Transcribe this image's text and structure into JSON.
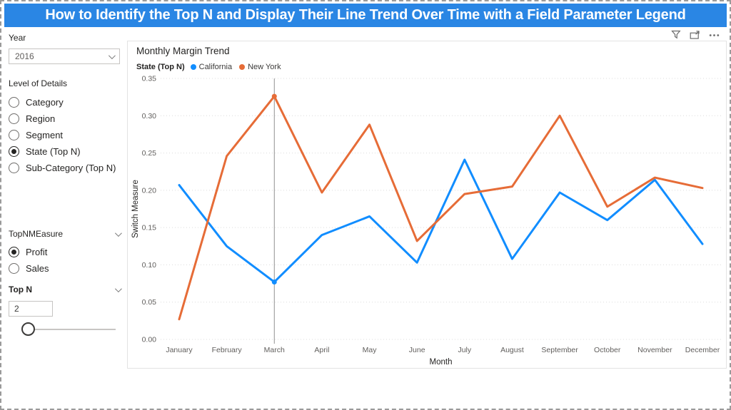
{
  "page": {
    "title": "How to Identify the Top N and Display Their Line Trend Over Time with a Field Parameter Legend",
    "title_bar_color": "#2a86e4"
  },
  "sidebar": {
    "year": {
      "label": "Year",
      "selected": "2016"
    },
    "level_of_details": {
      "label": "Level of Details",
      "options": [
        {
          "label": "Category",
          "selected": false
        },
        {
          "label": "Region",
          "selected": false
        },
        {
          "label": "Segment",
          "selected": false
        },
        {
          "label": "State (Top N)",
          "selected": true
        },
        {
          "label": "Sub-Category (Top N)",
          "selected": false
        }
      ]
    },
    "measure": {
      "label": "TopNMEasure",
      "options": [
        {
          "label": "Profit",
          "selected": true
        },
        {
          "label": "Sales",
          "selected": false
        }
      ]
    },
    "top_n": {
      "label": "Top N",
      "value": "2"
    }
  },
  "visual": {
    "title": "Monthly Margin Trend",
    "header_icons": [
      "filter-icon",
      "focus-mode-icon",
      "more-options-icon"
    ],
    "legend": {
      "label": "State (Top N)",
      "items": [
        {
          "label": "California",
          "color": "#118DFF"
        },
        {
          "label": "New York",
          "color": "#E66C37"
        }
      ]
    }
  },
  "chart_data": {
    "type": "line",
    "title": "Monthly Margin Trend",
    "xlabel": "Month",
    "ylabel": "Switch Measure",
    "ylim": [
      0,
      0.35
    ],
    "ytick_step": 0.05,
    "grid": true,
    "legend_position": "top",
    "categories": [
      "January",
      "February",
      "March",
      "April",
      "May",
      "June",
      "July",
      "August",
      "September",
      "October",
      "November",
      "December"
    ],
    "series": [
      {
        "name": "California",
        "color": "#118DFF",
        "values": [
          0.207,
          0.125,
          0.077,
          0.14,
          0.165,
          0.103,
          0.241,
          0.108,
          0.197,
          0.16,
          0.214,
          0.128
        ]
      },
      {
        "name": "New York",
        "color": "#E66C37",
        "values": [
          0.027,
          0.246,
          0.326,
          0.197,
          0.288,
          0.132,
          0.195,
          0.205,
          0.3,
          0.178,
          0.217,
          0.203
        ]
      }
    ],
    "reference_line_x": "March",
    "marker_x": "March"
  }
}
